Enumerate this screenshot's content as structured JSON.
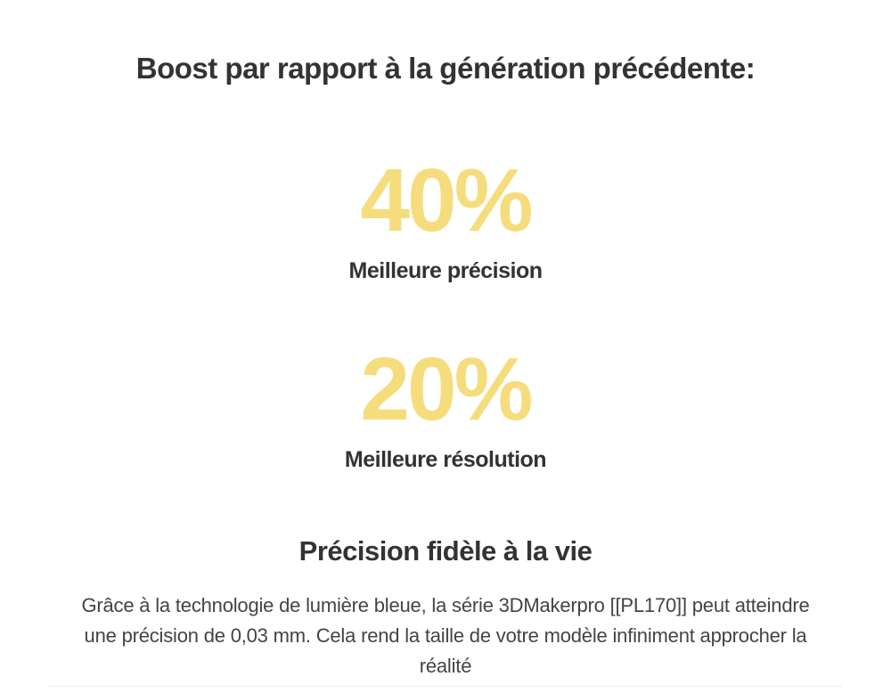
{
  "colors": {
    "background": "#ffffff",
    "accent_yellow": "#f5dd7d",
    "heading_text": "#333333",
    "body_text": "#444444",
    "divider": "#ececec"
  },
  "boost_section": {
    "title": "Boost par rapport à la génération précédente:",
    "stats": [
      {
        "value": "40%",
        "label": "Meilleure précision"
      },
      {
        "value": "20%",
        "label": "Meilleure résolution"
      }
    ]
  },
  "precision_section": {
    "heading": "Précision fidèle à la vie",
    "paragraph": "Grâce à la technologie de lumière bleue, la série 3DMakerpro [[PL170]] peut atteindre une précision de 0,03 mm. Cela rend la taille de votre modèle infiniment approcher la réalité",
    "paragraph_lines": [
      "Grâce à la technologie de lumière bleue, la série 3DMakerpro [[PL170]] peut atteindre",
      "une précision de 0,03 mm. Cela rend la taille de votre modèle infiniment approcher la",
      "réalité"
    ]
  }
}
